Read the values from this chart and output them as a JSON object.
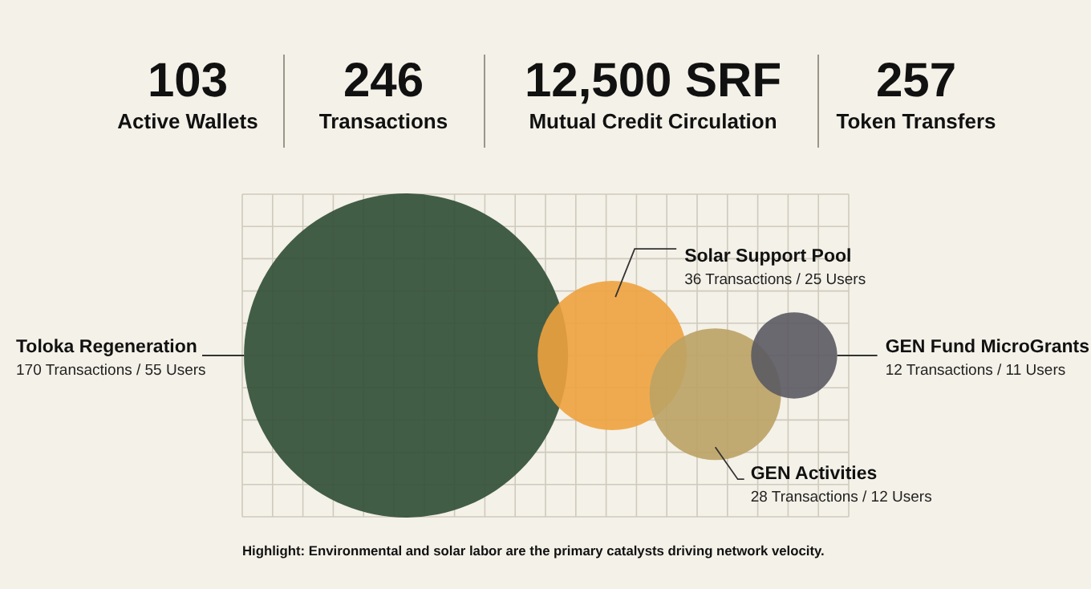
{
  "chart_data": [
    {
      "type": "other",
      "categories": [
        "Active Wallets",
        "Transactions",
        "Mutual Credit Circulation",
        "Token Transfers"
      ],
      "value_labels": [
        "103",
        "246",
        "12,500 SRF",
        "257"
      ]
    },
    {
      "type": "other",
      "categories": [
        "Toloka Regeneration",
        "Solar Support Pool",
        "GEN Activities",
        "GEN Fund MicroGrants"
      ],
      "values": [
        170,
        36,
        28,
        12
      ],
      "colors": [
        "#2f4d34",
        "#eea23f",
        "#bba264",
        "#5b5a62"
      ],
      "value_labels": [
        "170 Transactions / 55 Users",
        "36 Transactions / 25 Users",
        "28 Transactions / 12 Users",
        "12 Transactions / 11 Users"
      ],
      "annotations": [
        "Highlight: Environmental and solar labor are the primary catalysts driving network velocity."
      ]
    }
  ]
}
